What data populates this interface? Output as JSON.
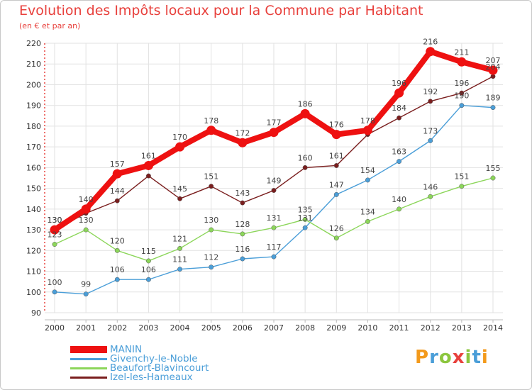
{
  "header": {
    "title": "Evolution des Impôts locaux pour la Commune par Habitant",
    "subtitle": "(en € et par an)"
  },
  "brand": {
    "letters": [
      "P",
      "r",
      "o",
      "x",
      "i",
      "t",
      "i"
    ],
    "colors": [
      "#f39a1c",
      "#4a9ed8",
      "#8cc63f",
      "#e8403c",
      "#8cc63f",
      "#4a9ed8",
      "#f39a1c"
    ]
  },
  "chart_data": {
    "type": "line",
    "title": "Evolution des Impôts locaux pour la Commune par Habitant",
    "subtitle": "(en € et par an)",
    "xlabel": "",
    "ylabel": "",
    "x": [
      "2000",
      "2001",
      "2002",
      "2003",
      "2004",
      "2005",
      "2006",
      "2007",
      "2008",
      "2009",
      "2010",
      "2011",
      "2012",
      "2013",
      "2014"
    ],
    "ylim": [
      90,
      220
    ],
    "yticks": [
      90,
      100,
      110,
      120,
      130,
      140,
      150,
      160,
      170,
      180,
      190,
      200,
      210,
      220
    ],
    "grid": true,
    "legend_position": "bottom-left",
    "series": [
      {
        "name": "MANIN",
        "color": "#ee1111",
        "emphasis": true,
        "values": [
          130,
          140,
          157,
          161,
          170,
          178,
          172,
          177,
          186,
          176,
          178,
          196,
          216,
          211,
          207
        ]
      },
      {
        "name": "Givenchy-le-Noble",
        "color": "#4a9ed8",
        "emphasis": false,
        "values": [
          100,
          99,
          106,
          106,
          111,
          112,
          116,
          117,
          131,
          147,
          154,
          163,
          173,
          190,
          189
        ]
      },
      {
        "name": "Beaufort-Blavincourt",
        "color": "#8cd65a",
        "emphasis": false,
        "values": [
          123,
          130,
          120,
          115,
          121,
          130,
          128,
          131,
          135,
          126,
          134,
          140,
          146,
          151,
          155
        ]
      },
      {
        "name": "Izel-les-Hameaux",
        "color": "#7a1e1e",
        "emphasis": false,
        "values": [
          130,
          138,
          144,
          156,
          145,
          151,
          143,
          149,
          160,
          161,
          176,
          184,
          192,
          196,
          204
        ]
      }
    ],
    "data_labels": [
      {
        "series": 2,
        "values": [
          123,
          130,
          120,
          115,
          121,
          130,
          128,
          131,
          135,
          126,
          134,
          140,
          146,
          151,
          155
        ]
      },
      {
        "series": 1,
        "values": [
          100,
          99,
          106,
          106,
          111,
          112,
          116,
          117,
          131,
          147,
          154,
          163,
          173,
          190,
          189
        ]
      },
      {
        "series": 3,
        "values": [
          130,
          null,
          144,
          null,
          145,
          151,
          143,
          149,
          160,
          161,
          null,
          184,
          192,
          196,
          204
        ]
      },
      {
        "series": 0,
        "values": [
          130,
          140,
          157,
          161,
          170,
          178,
          172,
          177,
          186,
          176,
          178,
          196,
          216,
          211,
          207
        ]
      }
    ]
  }
}
